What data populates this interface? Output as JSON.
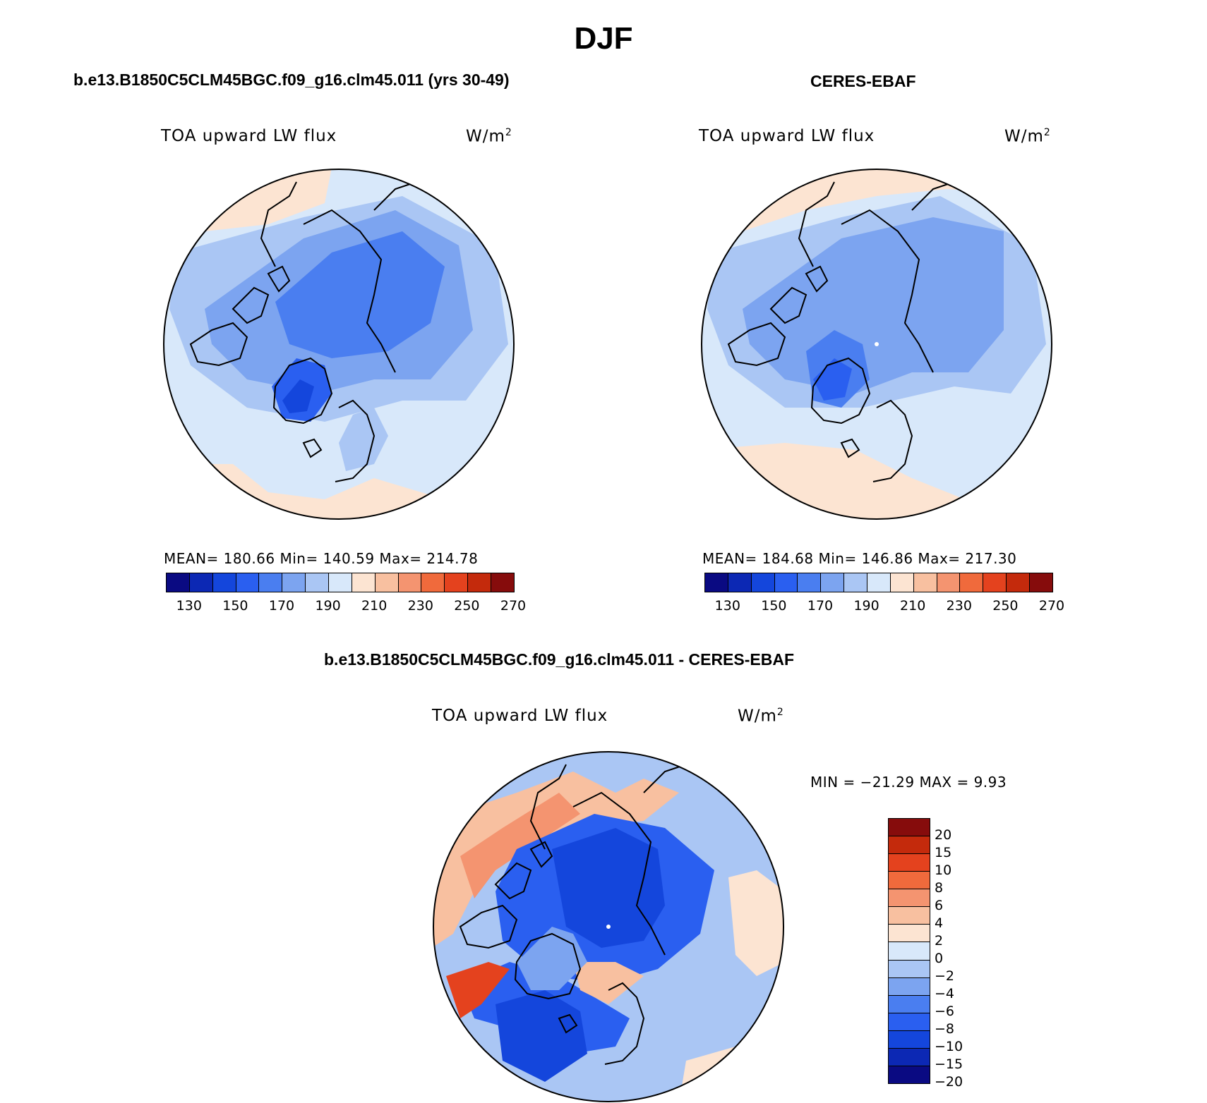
{
  "title": "DJF",
  "panels": [
    {
      "id": "model",
      "title": "b.e13.B1850C5CLM45BGC.f09_g16.clm45.011 (yrs 30-49)",
      "field": "TOA upward LW flux",
      "units": "W/m",
      "units_sup": "2",
      "stats": "MEAN= 180.66   Min= 140.59   Max= 214.78"
    },
    {
      "id": "obs",
      "title": "CERES-EBAF",
      "field": "TOA upward LW flux",
      "units": "W/m",
      "units_sup": "2",
      "stats": "MEAN= 184.68   Min= 146.86   Max= 217.30"
    },
    {
      "id": "diff",
      "title": "b.e13.B1850C5CLM45BGC.f09_g16.clm45.011 - CERES-EBAF",
      "field": "TOA upward LW flux",
      "units": "W/m",
      "units_sup": "2",
      "stats": "MIN = −21.29 MAX =    9.93"
    }
  ],
  "colorbar_abs": {
    "ticks": [
      "130",
      "150",
      "170",
      "190",
      "210",
      "230",
      "250",
      "270"
    ],
    "colors": [
      "#0a0a82",
      "#0c28b4",
      "#1446dc",
      "#2a5ff0",
      "#4a7ef0",
      "#7ca4f0",
      "#aac6f4",
      "#d8e8fa",
      "#fce4d2",
      "#f8c0a0",
      "#f49470",
      "#f06a3c",
      "#e4421e",
      "#c42a0c",
      "#860c0c"
    ]
  },
  "colorbar_diff": {
    "ticks": [
      "20",
      "15",
      "10",
      "8",
      "6",
      "4",
      "2",
      "0",
      "−2",
      "−4",
      "−6",
      "−8",
      "−10",
      "−15",
      "−20"
    ],
    "colors": [
      "#860c0c",
      "#c42a0c",
      "#e4421e",
      "#f06a3c",
      "#f49470",
      "#f8c0a0",
      "#fce4d2",
      "#d8e8fa",
      "#aac6f4",
      "#7ca4f0",
      "#4a7ef0",
      "#2a5ff0",
      "#1446dc",
      "#0c28b4",
      "#0a0a82"
    ]
  }
}
